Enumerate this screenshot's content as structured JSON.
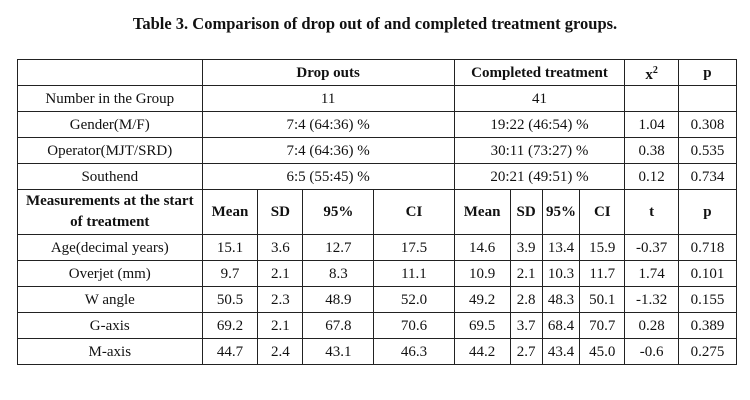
{
  "title": "Table 3. Comparison of drop out of and completed treatment groups.",
  "headers": {
    "drop_outs": "Drop outs",
    "completed": "Completed treatment",
    "x2_base": "x",
    "x2_sup": "2",
    "p": "p"
  },
  "group_rows": [
    {
      "label": "Number in the Group",
      "drop": "11",
      "completed": "41",
      "x2": "",
      "p": ""
    },
    {
      "label": "Gender(M/F)",
      "drop": "7:4 (64:36) %",
      "completed": "19:22 (46:54) %",
      "x2": "1.04",
      "p": "0.308"
    },
    {
      "label": "Operator(MJT/SRD)",
      "drop": "7:4 (64:36) %",
      "completed": "30:11 (73:27) %",
      "x2": "0.38",
      "p": "0.535"
    },
    {
      "label": "Southend",
      "drop": "6:5 (55:45) %",
      "completed": "20:21 (49:51) %",
      "x2": "0.12",
      "p": "0.734"
    }
  ],
  "measure_header": {
    "label": "Measurements at the start of treatment",
    "mean": "Mean",
    "sd": "SD",
    "pct": "95%",
    "ci": "CI",
    "t": "t",
    "p": "p"
  },
  "measure_rows": [
    {
      "label": "Age(decimal years)",
      "d_mean": "15.1",
      "d_sd": "3.6",
      "d_lo": "12.7",
      "d_hi": "17.5",
      "c_mean": "14.6",
      "c_sd": "3.9",
      "c_lo": "13.4",
      "c_hi": "15.9",
      "t": "-0.37",
      "p": "0.718"
    },
    {
      "label": "Overjet (mm)",
      "d_mean": "9.7",
      "d_sd": "2.1",
      "d_lo": "8.3",
      "d_hi": "11.1",
      "c_mean": "10.9",
      "c_sd": "2.1",
      "c_lo": "10.3",
      "c_hi": "11.7",
      "t": "1.74",
      "p": "0.101"
    },
    {
      "label": "W angle",
      "d_mean": "50.5",
      "d_sd": "2.3",
      "d_lo": "48.9",
      "d_hi": "52.0",
      "c_mean": "49.2",
      "c_sd": "2.8",
      "c_lo": "48.3",
      "c_hi": "50.1",
      "t": "-1.32",
      "p": "0.155"
    },
    {
      "label": "G-axis",
      "d_mean": "69.2",
      "d_sd": "2.1",
      "d_lo": "67.8",
      "d_hi": "70.6",
      "c_mean": "69.5",
      "c_sd": "3.7",
      "c_lo": "68.4",
      "c_hi": "70.7",
      "t": "0.28",
      "p": "0.389"
    },
    {
      "label": "M-axis",
      "d_mean": "44.7",
      "d_sd": "2.4",
      "d_lo": "43.1",
      "d_hi": "46.3",
      "c_mean": "44.2",
      "c_sd": "2.7",
      "c_lo": "43.4",
      "c_hi": "45.0",
      "t": "-0.6",
      "p": "0.275"
    }
  ]
}
